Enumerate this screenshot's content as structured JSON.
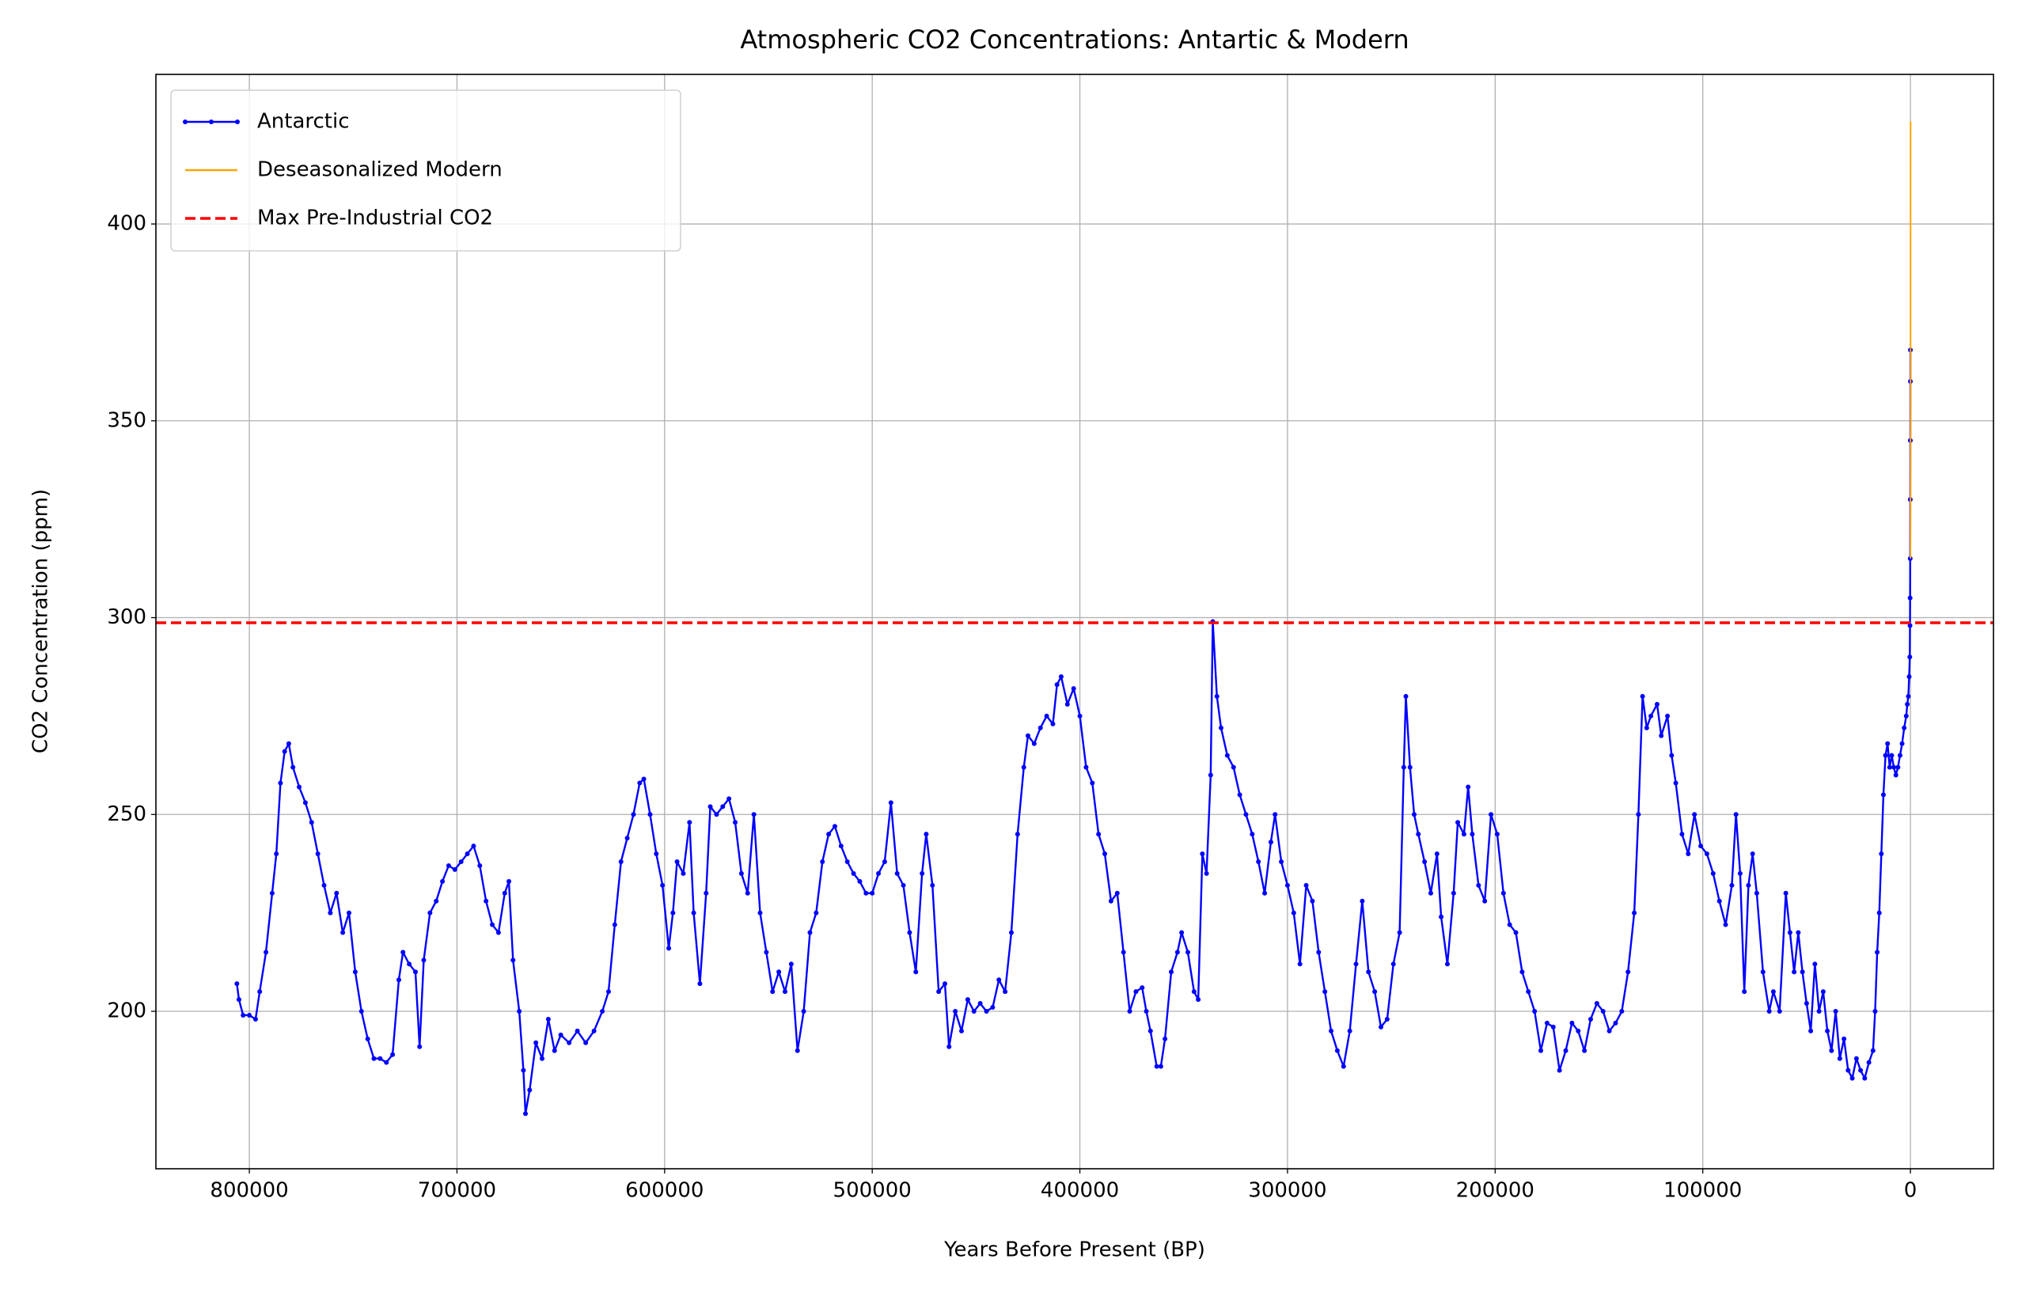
{
  "chart_data": {
    "type": "line",
    "title": "Atmospheric CO2 Concentrations: Antartic & Modern",
    "x_label": "Years Before Present (BP)",
    "y_label": "CO2 Concentration (ppm)",
    "xlim": [
      845000,
      -40000
    ],
    "ylim": [
      160,
      438
    ],
    "xticks": [
      800000,
      700000,
      600000,
      500000,
      400000,
      300000,
      200000,
      100000,
      0
    ],
    "yticks": [
      200,
      250,
      300,
      350,
      400
    ],
    "grid": true,
    "legend": "upper left",
    "series": [
      {
        "name": "Antarctic",
        "color": "blue",
        "markers": true,
        "x": [
          806000,
          805000,
          803000,
          800000,
          797000,
          795000,
          792000,
          789000,
          787000,
          785000,
          783000,
          781000,
          779000,
          776000,
          773000,
          770000,
          767000,
          764000,
          761000,
          758000,
          755000,
          752000,
          749000,
          746000,
          743000,
          740000,
          737000,
          734000,
          731000,
          728000,
          726000,
          723000,
          720000,
          718000,
          716000,
          713000,
          710000,
          707000,
          704000,
          701000,
          698000,
          695000,
          692000,
          689000,
          686000,
          683000,
          680000,
          677000,
          675000,
          673000,
          670000,
          668000,
          667000,
          665000,
          662000,
          659000,
          656000,
          653000,
          650000,
          646000,
          642000,
          638000,
          634000,
          630000,
          627000,
          624000,
          621000,
          618000,
          615000,
          612000,
          610000,
          607000,
          604000,
          601000,
          598000,
          596000,
          594000,
          591000,
          588000,
          586000,
          583000,
          580000,
          578000,
          575000,
          572000,
          569000,
          566000,
          563000,
          560000,
          557000,
          554000,
          551000,
          548000,
          545000,
          542000,
          539000,
          536000,
          533000,
          530000,
          527000,
          524000,
          521000,
          518000,
          515000,
          512000,
          509000,
          506000,
          503000,
          500000,
          497000,
          494000,
          491000,
          488000,
          485000,
          482000,
          479000,
          476000,
          474000,
          471000,
          468000,
          465000,
          463000,
          460000,
          457000,
          454000,
          451000,
          448000,
          445000,
          442000,
          439000,
          436000,
          433000,
          430000,
          427000,
          425000,
          422000,
          419000,
          416000,
          413000,
          411000,
          409000,
          406000,
          403000,
          400000,
          397000,
          394000,
          391000,
          388000,
          385000,
          382000,
          379000,
          376000,
          373000,
          370000,
          368000,
          366000,
          363000,
          361000,
          359000,
          356000,
          353000,
          351000,
          348000,
          345000,
          343000,
          341000,
          339000,
          337000,
          336000,
          334000,
          332000,
          329000,
          326000,
          323000,
          320000,
          317000,
          314000,
          311000,
          308000,
          306000,
          303000,
          300000,
          297000,
          294000,
          291000,
          288000,
          285000,
          282000,
          279000,
          276000,
          273000,
          270000,
          267000,
          264000,
          261000,
          258000,
          255000,
          252000,
          249000,
          246000,
          244000,
          243000,
          241000,
          239000,
          237000,
          234000,
          231000,
          228000,
          226000,
          223000,
          220000,
          218000,
          215000,
          213000,
          211000,
          208000,
          205000,
          202000,
          199000,
          196000,
          193000,
          190000,
          187000,
          184000,
          181000,
          178000,
          175000,
          172000,
          169000,
          166000,
          163000,
          160000,
          157000,
          154000,
          151000,
          148000,
          145000,
          142000,
          139000,
          136000,
          133000,
          131000,
          129000,
          127000,
          125000,
          122000,
          120000,
          117000,
          115000,
          113000,
          110000,
          107000,
          104000,
          101000,
          98000,
          95000,
          92000,
          89000,
          86000,
          84000,
          82000,
          80000,
          78000,
          76000,
          74000,
          71000,
          68000,
          66000,
          63000,
          60000,
          58000,
          56000,
          54000,
          52000,
          50000,
          48000,
          46000,
          44000,
          42000,
          40000,
          38000,
          36000,
          34000,
          32000,
          30000,
          28000,
          26000,
          24000,
          22000,
          20000,
          18000,
          17000,
          16000,
          15000,
          14000,
          13000,
          12000,
          11000,
          10000,
          9000,
          8000,
          7000,
          6000,
          5000,
          4000,
          3000,
          2000,
          1500,
          1000,
          600,
          300,
          200,
          150,
          100,
          60,
          30,
          10,
          0
        ],
        "values": [
          207,
          203,
          199,
          199,
          198,
          205,
          215,
          230,
          240,
          258,
          266,
          268,
          262,
          257,
          253,
          248,
          240,
          232,
          225,
          230,
          220,
          225,
          210,
          200,
          193,
          188,
          188,
          187,
          189,
          208,
          215,
          212,
          210,
          191,
          213,
          225,
          228,
          233,
          237,
          236,
          238,
          240,
          242,
          237,
          228,
          222,
          220,
          230,
          233,
          213,
          200,
          185,
          174,
          180,
          192,
          188,
          198,
          190,
          194,
          192,
          195,
          192,
          195,
          200,
          205,
          222,
          238,
          244,
          250,
          258,
          259,
          250,
          240,
          232,
          216,
          225,
          238,
          235,
          248,
          225,
          207,
          230,
          252,
          250,
          252,
          254,
          248,
          235,
          230,
          250,
          225,
          215,
          205,
          210,
          205,
          212,
          190,
          200,
          220,
          225,
          238,
          245,
          247,
          242,
          238,
          235,
          233,
          230,
          230,
          235,
          238,
          253,
          235,
          232,
          220,
          210,
          235,
          245,
          232,
          205,
          207,
          191,
          200,
          195,
          203,
          200,
          202,
          200,
          201,
          208,
          205,
          220,
          245,
          262,
          270,
          268,
          272,
          275,
          273,
          283,
          285,
          278,
          282,
          275,
          262,
          258,
          245,
          240,
          228,
          230,
          215,
          200,
          205,
          206,
          200,
          195,
          186,
          186,
          193,
          210,
          215,
          220,
          215,
          205,
          203,
          240,
          235,
          260,
          299,
          280,
          272,
          265,
          262,
          255,
          250,
          245,
          238,
          230,
          243,
          250,
          238,
          232,
          225,
          212,
          232,
          228,
          215,
          205,
          195,
          190,
          186,
          195,
          212,
          228,
          210,
          205,
          196,
          198,
          212,
          220,
          262,
          280,
          262,
          250,
          245,
          238,
          230,
          240,
          224,
          212,
          230,
          248,
          245,
          257,
          245,
          232,
          228,
          250,
          245,
          230,
          222,
          220,
          210,
          205,
          200,
          190,
          197,
          196,
          185,
          190,
          197,
          195,
          190,
          198,
          202,
          200,
          195,
          197,
          200,
          210,
          225,
          250,
          280,
          272,
          275,
          278,
          270,
          275,
          265,
          258,
          245,
          240,
          250,
          242,
          240,
          235,
          228,
          222,
          232,
          250,
          235,
          205,
          232,
          240,
          230,
          210,
          200,
          205,
          200,
          230,
          220,
          210,
          220,
          210,
          202,
          195,
          212,
          200,
          205,
          195,
          190,
          200,
          188,
          193,
          185,
          183,
          188,
          185,
          183,
          187,
          190,
          200,
          215,
          225,
          240,
          255,
          265,
          268,
          262,
          265,
          262,
          260,
          262,
          265,
          268,
          272,
          275,
          278,
          280,
          285,
          290,
          298,
          305,
          315,
          330,
          345,
          360,
          368
        ]
      },
      {
        "name": "Deseasonalized Modern",
        "color": "orange",
        "markers": false,
        "x": [
          -8,
          -18,
          -28,
          -38,
          -48,
          -58,
          -68,
          -74
        ],
        "values": [
          315,
          322,
          331,
          340,
          354,
          370,
          396,
          426
        ]
      }
    ],
    "hlines": [
      {
        "name": "Max Pre-Industrial CO2",
        "value": 298.7,
        "color": "red"
      }
    ]
  }
}
